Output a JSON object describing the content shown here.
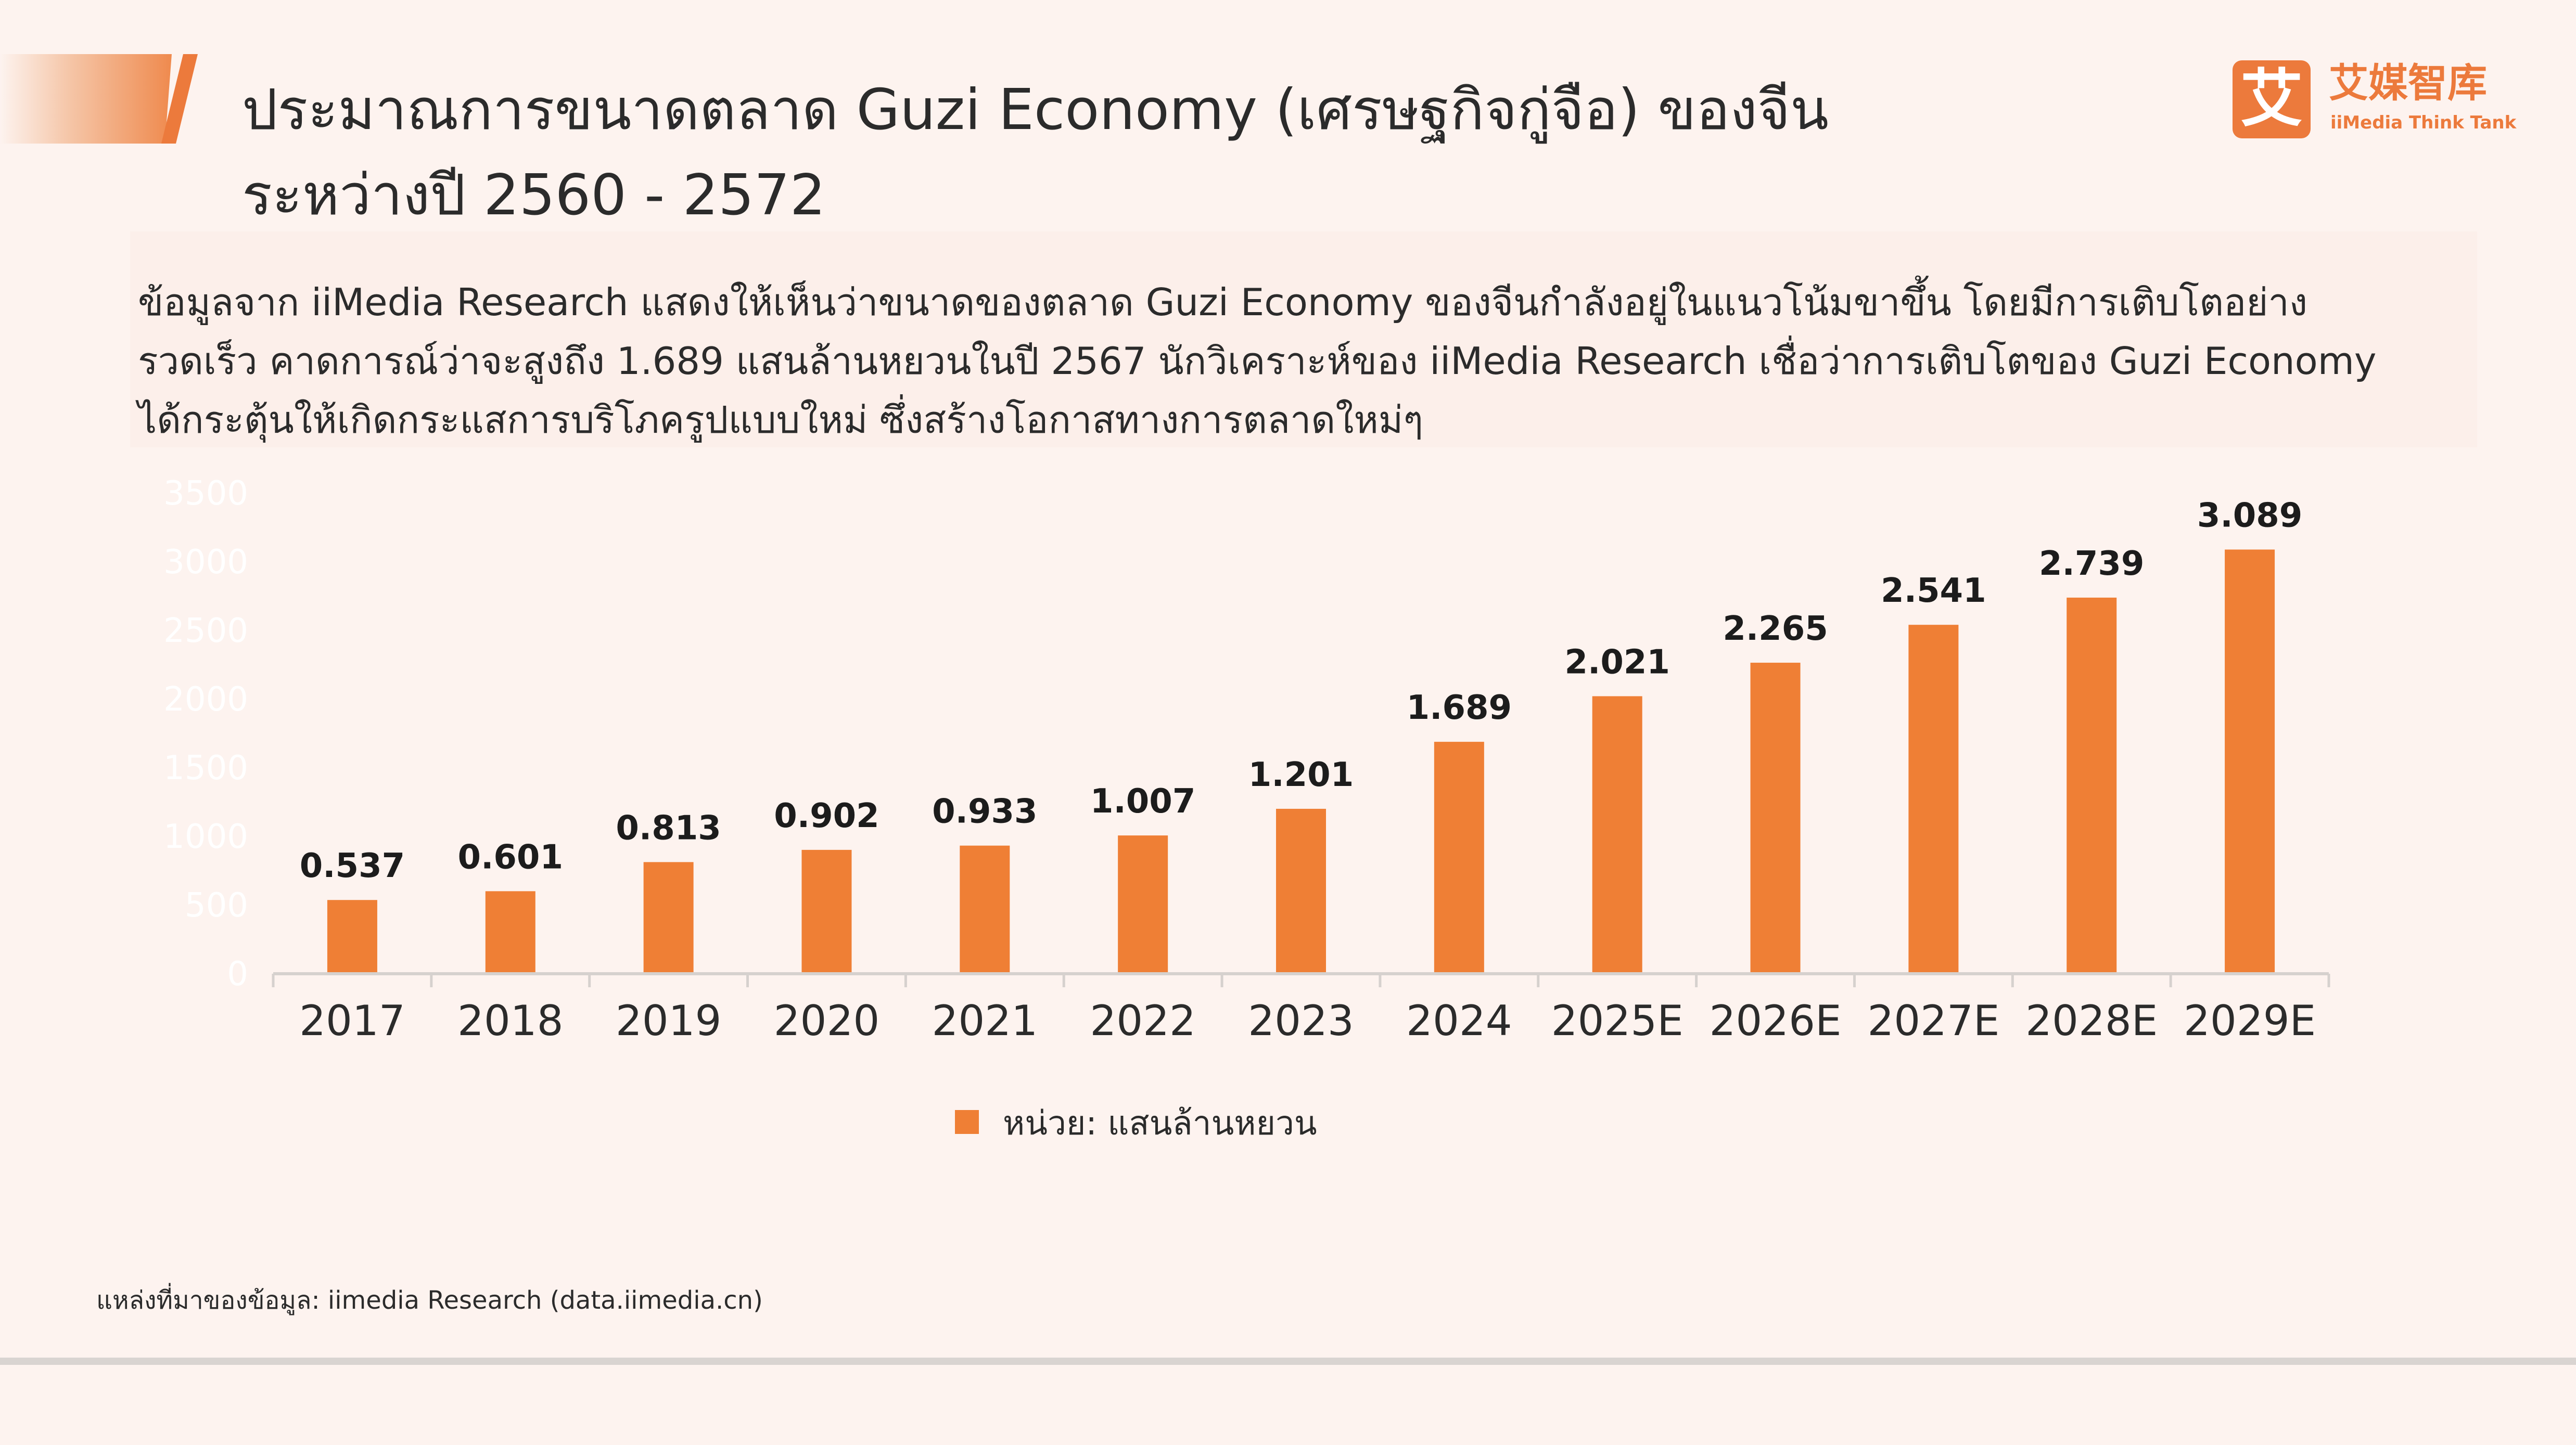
{
  "header": {
    "title_line1": "ประมาณการขนาดตลาด Guzi Economy (เศรษฐกิจกู่จือ) ของจีน",
    "title_line2": "ระหว่างปี 2560 - 2572"
  },
  "logo": {
    "mark": "艾",
    "cn": "艾媒智库",
    "en": "iiMedia Think Tank"
  },
  "description": {
    "line1": "ข้อมูลจาก iiMedia Research แสดงให้เห็นว่าขนาดของตลาด Guzi Economy ของจีนกำลังอยู่ในแนวโน้มขาขึ้น โดยมีการเติบโตอย่าง",
    "line2": "รวดเร็ว คาดการณ์ว่าจะสูงถึง 1.689 แสนล้านหยวนในปี 2567 นักวิเคราะห์ของ iiMedia Research เชื่อว่าการเติบโตของ Guzi Economy",
    "line3": "ได้กระตุ้นให้เกิดกระแสการบริโภครูปแบบใหม่ ซึ่งสร้างโอกาสทางการตลาดใหม่ๆ"
  },
  "source": "แหล่งที่มาของข้อมูล: iimedia Research (data.iimedia.cn)",
  "colors": {
    "bar": "#ef7f35",
    "accent": "#ec7a3c",
    "background": "#fdf3ef"
  },
  "chart_data": {
    "type": "bar",
    "categories": [
      "2017",
      "2018",
      "2019",
      "2020",
      "2021",
      "2022",
      "2023",
      "2024",
      "2025E",
      "2026E",
      "2027E",
      "2028E",
      "2029E"
    ],
    "values": [
      537,
      601,
      813,
      902,
      933,
      1007,
      1201,
      1689,
      2021,
      2265,
      2541,
      2739,
      3089
    ],
    "value_labels": [
      "0.537",
      "0.601",
      "0.813",
      "0.902",
      "0.933",
      "1.007",
      "1.201",
      "1.689",
      "2.021",
      "2.265",
      "2.541",
      "2.739",
      "3.089"
    ],
    "yticks": [
      0,
      500,
      1000,
      1500,
      2000,
      2500,
      3000,
      3500
    ],
    "ylim": [
      0,
      3500
    ],
    "legend": "หน่วย: แสนล้านหยวน",
    "legend_position": "bottom",
    "grid": false
  }
}
